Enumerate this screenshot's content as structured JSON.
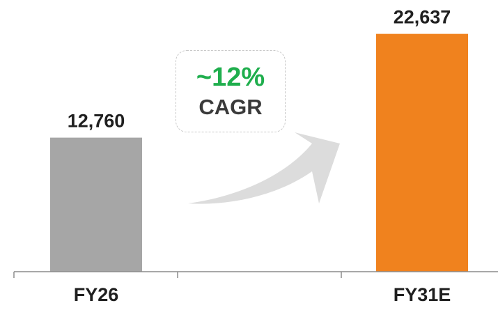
{
  "chart_data": {
    "type": "bar",
    "categories": [
      "FY26",
      "FY31E"
    ],
    "values": [
      12760,
      22637
    ],
    "value_labels": [
      "12,760",
      "22,637"
    ],
    "bar_colors": [
      "#a6a6a6",
      "#f0821e"
    ],
    "ylim": [
      0,
      25000
    ],
    "grid": false,
    "legend": "none",
    "annotation": {
      "value": "~12%",
      "text": "CAGR",
      "value_color": "#1fae4d"
    }
  }
}
